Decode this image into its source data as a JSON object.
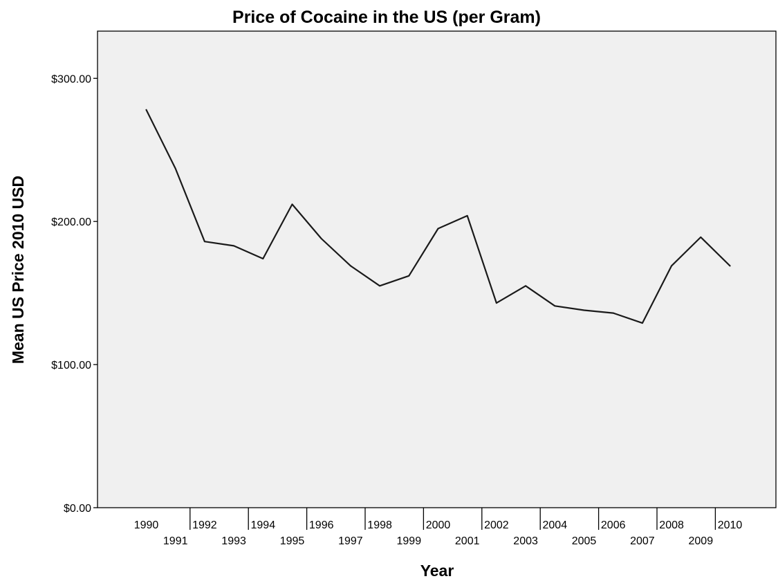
{
  "chart_data": {
    "type": "line",
    "title": "Price of Cocaine in the US (per Gram)",
    "xlabel": "Year",
    "ylabel": "Mean US Price 2010 USD",
    "x": [
      1990,
      1991,
      1992,
      1993,
      1994,
      1995,
      1996,
      1997,
      1998,
      1999,
      2000,
      2001,
      2002,
      2003,
      2004,
      2005,
      2006,
      2007,
      2008,
      2009,
      2010
    ],
    "x_tick_labels": [
      "1990",
      "1991",
      "1992",
      "1993",
      "1994",
      "1995",
      "1996",
      "1997",
      "1998",
      "1999",
      "2000",
      "2001",
      "2002",
      "2003",
      "2004",
      "2005",
      "2006",
      "2007",
      "2008",
      "2009",
      "2010"
    ],
    "series": [
      {
        "values": [
          278,
          237,
          186,
          183,
          174,
          212,
          188,
          169,
          155,
          162,
          195,
          204,
          143,
          155,
          141,
          138,
          136,
          129,
          169,
          189,
          169
        ]
      }
    ],
    "y_ticks": [
      0,
      100,
      200,
      300
    ],
    "y_tick_labels": [
      "$0.00",
      "$100.00",
      "$200.00",
      "$300.00"
    ],
    "ylim": [
      0,
      333
    ],
    "grid": false,
    "legend": "none",
    "colors": {
      "plot_background": "#f0f0f0",
      "line": "#1a1a1a",
      "axis": "#000000"
    }
  }
}
